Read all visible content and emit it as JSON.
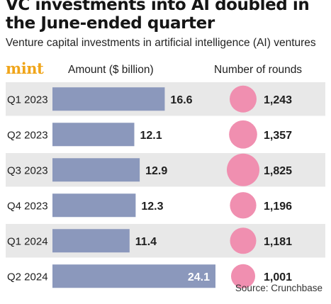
{
  "header": {
    "title_line1": "VC investments into AI doubled in",
    "title_line2": "the June-ended quarter",
    "subtitle": "Venture capital investments in artificial intelligence (AI) ventures",
    "logo_text": "mint",
    "amount_header": "Amount ($ billion)",
    "rounds_header": "Number of rounds"
  },
  "source": "Source: Crunchbase",
  "colors": {
    "bar": "#8b98bc",
    "bubble": "#f08fb0",
    "row_band": "#e8e8e8",
    "logo": "#f0a51a"
  },
  "chart_data": {
    "type": "bar",
    "orientation": "horizontal",
    "categories": [
      "Q1 2023",
      "Q2 2023",
      "Q3 2023",
      "Q4 2023",
      "Q1 2024",
      "Q2 2024"
    ],
    "series": [
      {
        "name": "Amount ($ billion)",
        "values": [
          16.6,
          12.1,
          12.9,
          12.3,
          11.4,
          24.1
        ],
        "labels": [
          "16.6",
          "12.1",
          "12.9",
          "12.3",
          "11.4",
          "24.1"
        ]
      },
      {
        "name": "Number of rounds",
        "values": [
          1243,
          1357,
          1825,
          1196,
          1181,
          1001
        ],
        "labels": [
          "1,243",
          "1,357",
          "1,825",
          "1,196",
          "1,181",
          "1,001"
        ],
        "encoding": "bubble-area"
      }
    ],
    "title": "VC investments into AI doubled in the June-ended quarter",
    "xlabel": "Amount ($ billion)",
    "ylabel": "",
    "xlim": [
      0,
      25
    ],
    "grid": false,
    "legend": "none"
  }
}
